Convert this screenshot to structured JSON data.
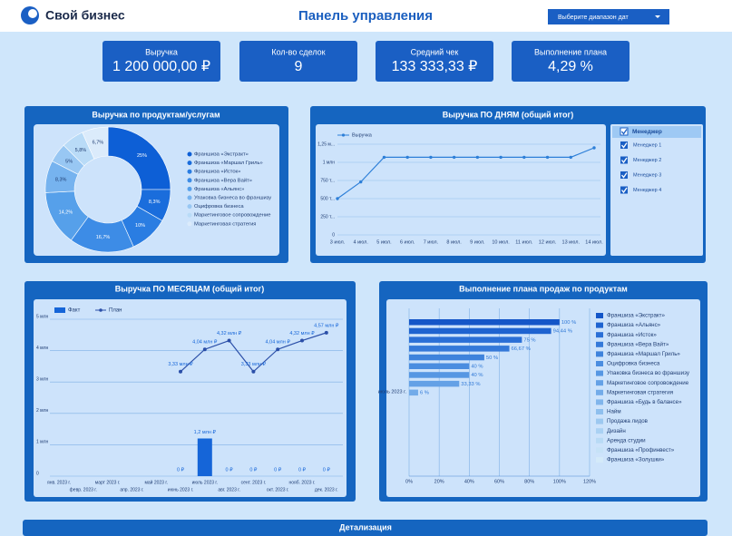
{
  "header": {
    "logo": "Свой бизнес",
    "title": "Панель управления",
    "date_picker": "Выберите диапазон дат"
  },
  "kpis": [
    {
      "label": "Выручка",
      "value": "1 200 000,00 ₽"
    },
    {
      "label": "Кол-во сделок",
      "value": "9"
    },
    {
      "label": "Средний чек",
      "value": "133 333,33 ₽"
    },
    {
      "label": "Выполнение плана",
      "value": "4,29 %"
    }
  ],
  "manager_filter": {
    "title": "Менеджер",
    "items": [
      "Менеджер 1",
      "Менеджер 2",
      "Менеджер 3",
      "Менеджер 4"
    ]
  },
  "footer": {
    "title": "Детализация"
  },
  "chart_data": [
    {
      "type": "pie",
      "title": "Выручка по продуктам/услугам",
      "donut": true,
      "categories": [
        "Франшиза «Экстракт»",
        "Франшиза «Маршал Гриль»",
        "Франшиза «Исток»",
        "Франшиза «Вера Вайт»",
        "Франшиза «Альянс»",
        "Упаковка бизнеса во франшизу",
        "Оцифровка бизнеса",
        "Маркетинговое сопровождение",
        "Маркетинговая стратегия"
      ],
      "values": [
        25,
        8.3,
        10,
        16.7,
        14.2,
        8.3,
        5,
        5.8,
        6.7
      ],
      "value_labels": [
        "25%",
        "8,3%",
        "10%",
        "16,7%",
        "14,2%",
        "8,3%",
        "5%",
        "5,8%",
        "6,7%"
      ],
      "colors": [
        "#0d5fd6",
        "#1a6ddc",
        "#2a7de2",
        "#3d8ce6",
        "#56a0ea",
        "#76b3ef",
        "#98c7f3",
        "#b9dbf7",
        "#dbebfb"
      ]
    },
    {
      "type": "line",
      "title": "Выручка ПО ДНЯМ (общий итог)",
      "categories": [
        "3 июл.",
        "4 июл.",
        "5 июл.",
        "6 июл.",
        "7 июл.",
        "8 июл.",
        "9 июл.",
        "10 июл.",
        "11 июл.",
        "12 июл.",
        "13 июл.",
        "14 июл."
      ],
      "series": [
        {
          "name": "Выручка",
          "color": "#2d7fd8",
          "values": [
            500000,
            730000,
            1070000,
            1070000,
            1070000,
            1070000,
            1070000,
            1070000,
            1070000,
            1070000,
            1070000,
            1200000
          ]
        }
      ],
      "ylim": [
        0,
        1250000
      ],
      "yticks": [
        0,
        {
          "value": 250000,
          "label": "250 т..."
        },
        {
          "value": 500000,
          "label": "500 т..."
        },
        {
          "value": 750000,
          "label": "750 т..."
        },
        {
          "value": 1000000,
          "label": "1 млн"
        },
        {
          "value": 1250000,
          "label": "1,25 м..."
        }
      ],
      "grid": true
    },
    {
      "type": "combo",
      "title": "Выручка ПО МЕСЯЦАМ (общий итог)",
      "categories": [
        "янв. 2023 г.",
        "февр. 2023 г.",
        "март 2023 г.",
        "апр. 2023 г.",
        "май 2023 г.",
        "июнь 2023 г.",
        "июль 2023 г.",
        "авг. 2023 г.",
        "сент. 2023 г.",
        "окт. 2023 г.",
        "нояб. 2023 г.",
        "дек. 2023 г."
      ],
      "series": [
        {
          "name": "Факт",
          "kind": "bar",
          "color": "#1565d8",
          "values": [
            null,
            null,
            null,
            null,
            null,
            0,
            1200000,
            0,
            0,
            0,
            0,
            0
          ],
          "value_labels": [
            null,
            null,
            null,
            null,
            null,
            "0 ₽",
            "1,2 млн ₽",
            "0 ₽",
            "0 ₽",
            "0 ₽",
            "0 ₽",
            "0 ₽"
          ]
        },
        {
          "name": "План",
          "kind": "line",
          "color": "#2b4fa8",
          "values": [
            null,
            null,
            null,
            null,
            null,
            3330000,
            4040000,
            4320000,
            3330000,
            4040000,
            4320000,
            4570000
          ],
          "value_labels": [
            null,
            null,
            null,
            null,
            null,
            "3,33 млн ₽",
            "4,04 млн ₽",
            "4,32 млн ₽",
            "3,33 млн ₽",
            "4,04 млн ₽",
            "4,32 млн ₽",
            "4,57 млн ₽"
          ]
        }
      ],
      "ylim": [
        0,
        5000000
      ],
      "yticks": [
        0,
        {
          "value": 1000000,
          "label": "1 млн"
        },
        {
          "value": 2000000,
          "label": "2 млн"
        },
        {
          "value": 3000000,
          "label": "3 млн"
        },
        {
          "value": 4000000,
          "label": "4 млн"
        },
        {
          "value": 5000000,
          "label": "5 млн"
        }
      ],
      "grid": true
    },
    {
      "type": "hbar",
      "title": "Выполнение плана продаж по продуктам",
      "categories": [
        "июль 2023 г."
      ],
      "series": [
        {
          "name": "Франшиза «Экстракт»",
          "color": "#1456c8",
          "values": [
            100
          ],
          "value_labels": [
            "100 %"
          ]
        },
        {
          "name": "Франшиза «Альянс»",
          "color": "#1e63d0",
          "values": [
            94.44
          ],
          "value_labels": [
            "94,44 %"
          ]
        },
        {
          "name": "Франшиза «Исток»",
          "color": "#2a6fd6",
          "values": [
            75
          ],
          "value_labels": [
            "75 %"
          ]
        },
        {
          "name": "Франшиза «Вера Вайт»",
          "color": "#3479d9",
          "values": [
            66.67
          ],
          "value_labels": [
            "66,67 %"
          ]
        },
        {
          "name": "Франшиза «Маршал Гриль»",
          "color": "#3e83dc",
          "values": [
            50
          ],
          "value_labels": [
            "50 %"
          ]
        },
        {
          "name": "Оцифровка бизнеса",
          "color": "#4a8de0",
          "values": [
            40
          ],
          "value_labels": [
            "40 %"
          ]
        },
        {
          "name": "Упаковка бизнеса во франшизу",
          "color": "#5697e3",
          "values": [
            40
          ],
          "value_labels": [
            "40 %"
          ]
        },
        {
          "name": "Маркетинговое сопровождение",
          "color": "#64a1e6",
          "values": [
            33.33
          ],
          "value_labels": [
            "33,33 %"
          ]
        },
        {
          "name": "Маркетинговая стратегия",
          "color": "#72abe9",
          "values": [
            6
          ],
          "value_labels": [
            "6 %"
          ]
        },
        {
          "name": "Франшиза «Будь в балансе»",
          "color": "#80b5ec",
          "values": [
            null
          ],
          "value_labels": [
            null
          ]
        },
        {
          "name": "Найм",
          "color": "#8ebfee",
          "values": [
            null
          ],
          "value_labels": [
            null
          ]
        },
        {
          "name": "Продажа лидов",
          "color": "#9cc8f0",
          "values": [
            null
          ],
          "value_labels": [
            null
          ]
        },
        {
          "name": "Дизайн",
          "color": "#aad1f3",
          "values": [
            null
          ],
          "value_labels": [
            null
          ]
        },
        {
          "name": "Аренда студии",
          "color": "#b8daf5",
          "values": [
            null
          ],
          "value_labels": [
            null
          ]
        },
        {
          "name": "Франшиза «Профинвест»",
          "color": "#c6e2f7",
          "values": [
            null
          ],
          "value_labels": [
            null
          ]
        },
        {
          "name": "Франшиза «Золушки»",
          "color": "#d4eaf9",
          "values": [
            null
          ],
          "value_labels": [
            null
          ]
        }
      ],
      "xlim": [
        0,
        120
      ],
      "xticks": [
        {
          "value": 0,
          "label": "0%"
        },
        {
          "value": 20,
          "label": "20%"
        },
        {
          "value": 40,
          "label": "40%"
        },
        {
          "value": 60,
          "label": "60%"
        },
        {
          "value": 80,
          "label": "80%"
        },
        {
          "value": 100,
          "label": "100%"
        },
        {
          "value": 120,
          "label": "120%"
        }
      ],
      "grid": true
    }
  ]
}
